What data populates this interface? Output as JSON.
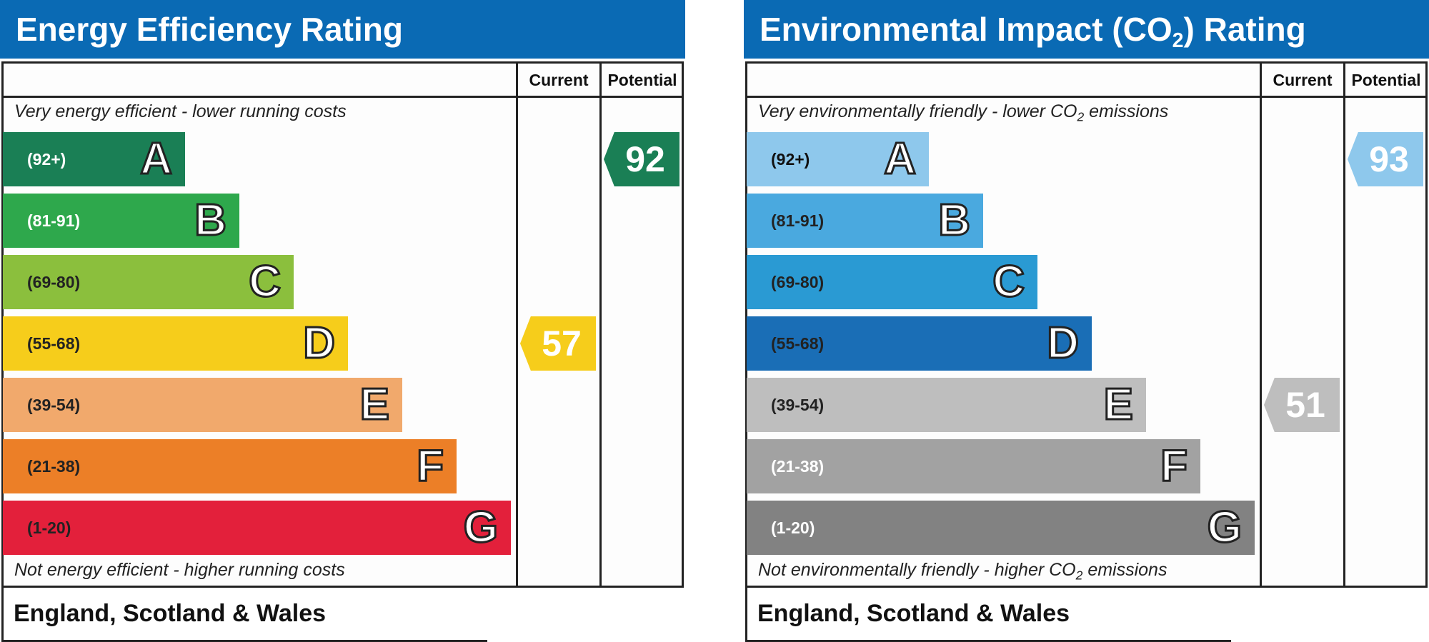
{
  "chart_data": [
    {
      "type": "bar",
      "title": "Energy Efficiency Rating",
      "columns": [
        "Current",
        "Potential"
      ],
      "top_note": "Very energy efficient - lower running costs",
      "bottom_note": "Not energy efficient - higher running costs",
      "footer": "England, Scotland & Wales",
      "bands": [
        {
          "range": "(92+)",
          "letter": "A",
          "color": "#1a7f55",
          "text_color": "#ffffff"
        },
        {
          "range": "(81-91)",
          "letter": "B",
          "color": "#2ea84c",
          "text_color": "#ffffff"
        },
        {
          "range": "(69-80)",
          "letter": "C",
          "color": "#8bbf3d",
          "text_color": "#222222"
        },
        {
          "range": "(55-68)",
          "letter": "D",
          "color": "#f6cd1b",
          "text_color": "#222222"
        },
        {
          "range": "(39-54)",
          "letter": "E",
          "color": "#f1a96c",
          "text_color": "#222222"
        },
        {
          "range": "(21-38)",
          "letter": "F",
          "color": "#ec7f27",
          "text_color": "#222222"
        },
        {
          "range": "(1-20)",
          "letter": "G",
          "color": "#e3203b",
          "text_color": "#222222"
        }
      ],
      "current": {
        "value": "57",
        "band": "D",
        "color": "#f6cd1b"
      },
      "potential": {
        "value": "92",
        "band": "A",
        "color": "#1a7f55"
      }
    },
    {
      "type": "bar",
      "title_main": "Environmental Impact (CO",
      "title_sub": "2",
      "title_end": ") Rating",
      "columns": [
        "Current",
        "Potential"
      ],
      "top_note_main": "Very environmentally friendly - lower CO",
      "top_note_sub": "2",
      "top_note_end": " emissions",
      "bottom_note_main": "Not environmentally friendly - higher CO",
      "bottom_note_sub": "2",
      "bottom_note_end": " emissions",
      "footer": "England, Scotland & Wales",
      "bands": [
        {
          "range": "(92+)",
          "letter": "A",
          "color": "#8ec8ec",
          "text_color": "#111111"
        },
        {
          "range": "(81-91)",
          "letter": "B",
          "color": "#4aa9df",
          "text_color": "#222222"
        },
        {
          "range": "(69-80)",
          "letter": "C",
          "color": "#2a9ad3",
          "text_color": "#222222"
        },
        {
          "range": "(55-68)",
          "letter": "D",
          "color": "#1a6eb6",
          "text_color": "#222222"
        },
        {
          "range": "(39-54)",
          "letter": "E",
          "color": "#bebebe",
          "text_color": "#222222"
        },
        {
          "range": "(21-38)",
          "letter": "F",
          "color": "#a2a2a2",
          "text_color": "#ffffff"
        },
        {
          "range": "(1-20)",
          "letter": "G",
          "color": "#828282",
          "text_color": "#ffffff"
        }
      ],
      "current": {
        "value": "51",
        "band": "E",
        "color": "#bebebe"
      },
      "potential": {
        "value": "93",
        "band": "A",
        "color": "#8ec8ec"
      }
    }
  ]
}
